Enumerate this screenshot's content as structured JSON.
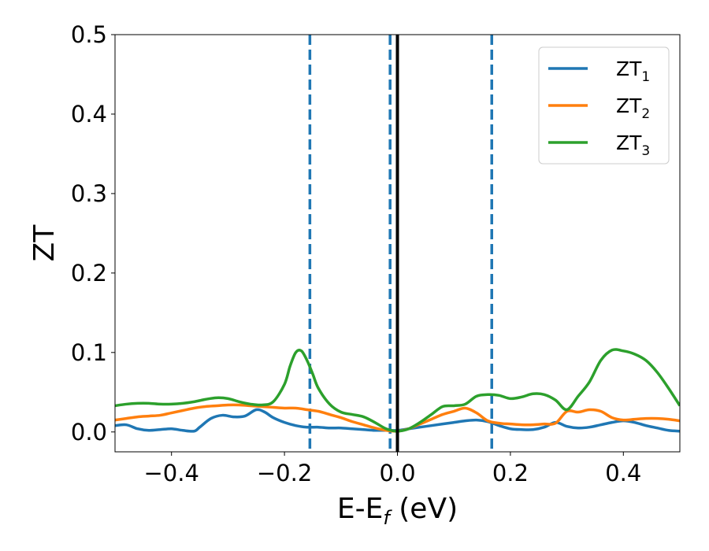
{
  "chart_data": {
    "type": "line",
    "xlabel_main": "E-E",
    "xlabel_sub": "f",
    "xlabel_unit": " (eV)",
    "ylabel": "ZT",
    "xlim": [
      -0.5,
      0.5
    ],
    "ylim": [
      -0.025,
      0.5
    ],
    "x_ticks": [
      -0.4,
      -0.2,
      0.0,
      0.2,
      0.4
    ],
    "x_tick_labels": [
      "−0.4",
      "−0.2",
      "0.0",
      "0.2",
      "0.4"
    ],
    "y_ticks": [
      0.0,
      0.1,
      0.2,
      0.3,
      0.4,
      0.5
    ],
    "y_tick_labels": [
      "0.0",
      "0.1",
      "0.2",
      "0.3",
      "0.4",
      "0.5"
    ],
    "grid": false,
    "legend_position": "top-right",
    "fermi_line": {
      "x": 0.0,
      "color": "#000000"
    },
    "vlines": [
      {
        "x": -0.155,
        "color": "#1f77b4",
        "style": "dashed"
      },
      {
        "x": -0.013,
        "color": "#1f77b4",
        "style": "dashed"
      },
      {
        "x": 0.167,
        "color": "#1f77b4",
        "style": "dashed"
      }
    ],
    "series": [
      {
        "name": "ZT",
        "sub": "1",
        "color": "#1f77b4",
        "x": [
          -0.5,
          -0.48,
          -0.46,
          -0.44,
          -0.42,
          -0.4,
          -0.38,
          -0.36,
          -0.35,
          -0.33,
          -0.31,
          -0.29,
          -0.27,
          -0.25,
          -0.235,
          -0.22,
          -0.2,
          -0.18,
          -0.16,
          -0.14,
          -0.12,
          -0.1,
          -0.08,
          -0.06,
          -0.04,
          -0.02,
          0.0,
          0.02,
          0.04,
          0.06,
          0.08,
          0.1,
          0.12,
          0.14,
          0.16,
          0.18,
          0.2,
          0.22,
          0.24,
          0.26,
          0.28,
          0.3,
          0.32,
          0.34,
          0.36,
          0.38,
          0.4,
          0.42,
          0.44,
          0.46,
          0.48,
          0.5
        ],
        "y": [
          0.008,
          0.009,
          0.004,
          0.002,
          0.003,
          0.004,
          0.002,
          0.001,
          0.006,
          0.017,
          0.021,
          0.019,
          0.02,
          0.028,
          0.025,
          0.018,
          0.012,
          0.008,
          0.006,
          0.006,
          0.005,
          0.005,
          0.004,
          0.003,
          0.002,
          0.002,
          0.002,
          0.004,
          0.006,
          0.008,
          0.01,
          0.012,
          0.014,
          0.015,
          0.013,
          0.008,
          0.004,
          0.003,
          0.003,
          0.006,
          0.012,
          0.007,
          0.005,
          0.006,
          0.009,
          0.012,
          0.014,
          0.012,
          0.008,
          0.005,
          0.002,
          0.001
        ]
      },
      {
        "name": "ZT",
        "sub": "2",
        "color": "#ff7f0e",
        "x": [
          -0.5,
          -0.48,
          -0.46,
          -0.44,
          -0.42,
          -0.4,
          -0.38,
          -0.36,
          -0.34,
          -0.32,
          -0.3,
          -0.28,
          -0.26,
          -0.24,
          -0.22,
          -0.2,
          -0.18,
          -0.16,
          -0.14,
          -0.12,
          -0.1,
          -0.08,
          -0.06,
          -0.04,
          -0.02,
          0.0,
          0.02,
          0.04,
          0.06,
          0.08,
          0.1,
          0.12,
          0.14,
          0.16,
          0.18,
          0.2,
          0.22,
          0.24,
          0.26,
          0.28,
          0.3,
          0.32,
          0.34,
          0.36,
          0.38,
          0.4,
          0.42,
          0.44,
          0.46,
          0.48,
          0.5
        ],
        "y": [
          0.015,
          0.017,
          0.019,
          0.02,
          0.021,
          0.024,
          0.027,
          0.03,
          0.032,
          0.033,
          0.034,
          0.034,
          0.033,
          0.032,
          0.031,
          0.03,
          0.03,
          0.028,
          0.026,
          0.022,
          0.018,
          0.013,
          0.009,
          0.005,
          0.002,
          0.001,
          0.004,
          0.01,
          0.016,
          0.022,
          0.026,
          0.03,
          0.024,
          0.014,
          0.011,
          0.01,
          0.009,
          0.009,
          0.01,
          0.011,
          0.026,
          0.025,
          0.028,
          0.026,
          0.018,
          0.015,
          0.016,
          0.017,
          0.017,
          0.016,
          0.014
        ]
      },
      {
        "name": "ZT",
        "sub": "3",
        "color": "#2ca02c",
        "x": [
          -0.5,
          -0.48,
          -0.46,
          -0.44,
          -0.42,
          -0.4,
          -0.38,
          -0.36,
          -0.34,
          -0.32,
          -0.3,
          -0.28,
          -0.26,
          -0.24,
          -0.22,
          -0.2,
          -0.19,
          -0.18,
          -0.17,
          -0.16,
          -0.15,
          -0.14,
          -0.12,
          -0.1,
          -0.08,
          -0.06,
          -0.04,
          -0.02,
          0.0,
          0.02,
          0.04,
          0.06,
          0.08,
          0.1,
          0.12,
          0.14,
          0.16,
          0.18,
          0.2,
          0.22,
          0.24,
          0.26,
          0.28,
          0.3,
          0.32,
          0.34,
          0.36,
          0.38,
          0.4,
          0.42,
          0.44,
          0.46,
          0.48,
          0.5
        ],
        "y": [
          0.033,
          0.035,
          0.036,
          0.036,
          0.035,
          0.035,
          0.036,
          0.038,
          0.041,
          0.043,
          0.042,
          0.038,
          0.035,
          0.034,
          0.038,
          0.06,
          0.083,
          0.1,
          0.102,
          0.09,
          0.073,
          0.055,
          0.035,
          0.025,
          0.022,
          0.019,
          0.012,
          0.004,
          0.001,
          0.004,
          0.012,
          0.022,
          0.032,
          0.033,
          0.035,
          0.045,
          0.047,
          0.046,
          0.042,
          0.044,
          0.048,
          0.047,
          0.04,
          0.028,
          0.045,
          0.063,
          0.09,
          0.103,
          0.102,
          0.098,
          0.09,
          0.075,
          0.055,
          0.033
        ]
      }
    ]
  }
}
